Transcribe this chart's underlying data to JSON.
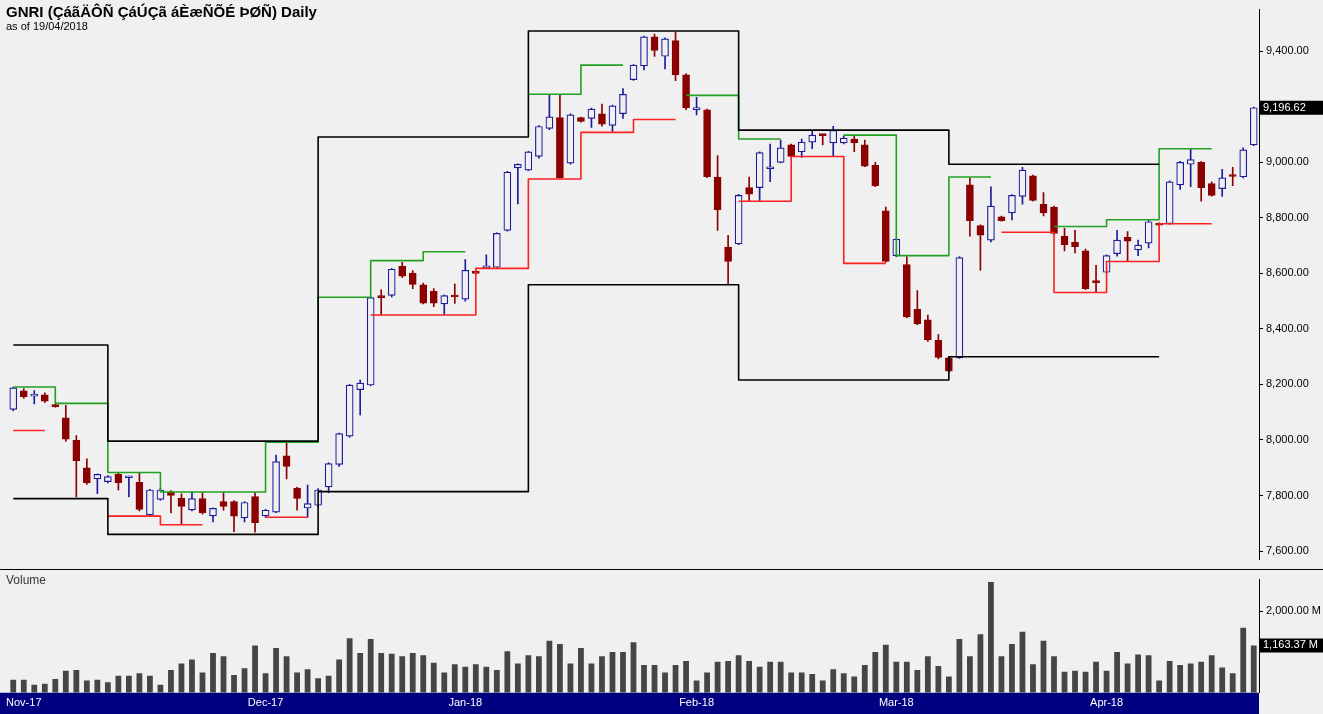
{
  "chart_data": [
    {
      "type": "candlestick",
      "title": "GNRI (ÇáãÄÔÑ ÇáÚÇã áÈæÑÕÉ ÞØÑ) Daily",
      "subtitle": "as of 19/04/2018",
      "categories": [
        null,
        null,
        null,
        null,
        null,
        null,
        null,
        null,
        null,
        null,
        null,
        null,
        null,
        null,
        null,
        null,
        null,
        null,
        null,
        null,
        null,
        null,
        null,
        null,
        null,
        null,
        null,
        null,
        null,
        null,
        null,
        null,
        null,
        null,
        null,
        null,
        null,
        null,
        null,
        null,
        null,
        null,
        null,
        null,
        null,
        null,
        null,
        null,
        null,
        null,
        null,
        null,
        null,
        null,
        null,
        null,
        null,
        null,
        null,
        null,
        null,
        null,
        null,
        null,
        null,
        null,
        null,
        null,
        null,
        null,
        null,
        null,
        null,
        null,
        null,
        null,
        null,
        null,
        null,
        null,
        null,
        null,
        null,
        null,
        null,
        null,
        null,
        null,
        null,
        null,
        null,
        null,
        null,
        null,
        null,
        null,
        null,
        null,
        null,
        null,
        null,
        null,
        null,
        null,
        null,
        null,
        null,
        null,
        null,
        null,
        null,
        null,
        null,
        null,
        null,
        null,
        null,
        null,
        null
      ],
      "ohlc": [
        [
          8110,
          8190,
          8105,
          8188
        ],
        [
          8177,
          8185,
          8150,
          8156
        ],
        [
          8158,
          8178,
          8130,
          8162
        ],
        [
          8163,
          8170,
          8135,
          8140
        ],
        [
          8128,
          8130,
          8118,
          8120
        ],
        [
          8080,
          8125,
          7995,
          8003
        ],
        [
          7999,
          8016,
          7795,
          7926
        ],
        [
          7900,
          7932,
          7840,
          7845
        ],
        [
          7860,
          7878,
          7807,
          7876
        ],
        [
          7850,
          7872,
          7845,
          7868
        ],
        [
          7876,
          7880,
          7820,
          7846
        ],
        [
          7864,
          7868,
          7795,
          7867
        ],
        [
          7848,
          7880,
          7745,
          7750
        ],
        [
          7730,
          7822,
          7728,
          7820
        ],
        [
          7786,
          7825,
          7783,
          7820
        ],
        [
          7813,
          7818,
          7737,
          7800
        ],
        [
          7790,
          7806,
          7695,
          7761
        ],
        [
          7748,
          7813,
          7745,
          7789
        ],
        [
          7789,
          7810,
          7733,
          7737
        ],
        [
          7727,
          7756,
          7705,
          7754
        ],
        [
          7778,
          7810,
          7747,
          7761
        ],
        [
          7778,
          7782,
          7670,
          7726
        ],
        [
          7720,
          7778,
          7705,
          7775
        ],
        [
          7796,
          7810,
          7668,
          7702
        ],
        [
          7727,
          7750,
          7722,
          7747
        ],
        [
          7740,
          7946,
          7738,
          7922
        ],
        [
          7943,
          7992,
          7860,
          7905
        ],
        [
          7827,
          7830,
          7747,
          7790
        ],
        [
          7755,
          7838,
          7722,
          7771
        ],
        [
          7765,
          7825,
          7760,
          7820
        ],
        [
          7831,
          7918,
          7810,
          7915
        ],
        [
          7912,
          8025,
          7905,
          8023
        ],
        [
          8014,
          8200,
          8010,
          8198
        ],
        [
          8181,
          8216,
          8090,
          8205
        ],
        [
          8198,
          8515,
          8195,
          8513
        ],
        [
          8520,
          8541,
          8450,
          8512
        ],
        [
          8521,
          8618,
          8515,
          8615
        ],
        [
          8625,
          8640,
          8585,
          8590
        ],
        [
          8601,
          8610,
          8545,
          8560
        ],
        [
          8559,
          8565,
          8490,
          8493
        ],
        [
          8535,
          8545,
          8480,
          8493
        ],
        [
          8490,
          8522,
          8452,
          8520
        ],
        [
          8520,
          8562,
          8492,
          8515
        ],
        [
          8507,
          8650,
          8500,
          8611
        ],
        [
          8608,
          8610,
          8598,
          8600
        ],
        [
          8620,
          8667,
          8618,
          8622
        ],
        [
          8622,
          8746,
          8620,
          8744
        ],
        [
          8755,
          8968,
          8752,
          8965
        ],
        [
          8980,
          8995,
          8850,
          8993
        ],
        [
          8972,
          9040,
          8970,
          9038
        ],
        [
          9021,
          9132,
          9015,
          9129
        ],
        [
          9122,
          9241,
          9118,
          9164
        ],
        [
          9161,
          9241,
          8944,
          8944
        ],
        [
          8997,
          9175,
          8993,
          9171
        ],
        [
          9161,
          9163,
          9145,
          9147
        ],
        [
          9158,
          9195,
          9126,
          9192
        ],
        [
          9175,
          9210,
          9130,
          9137
        ],
        [
          9133,
          9206,
          9108,
          9203
        ],
        [
          9175,
          9266,
          9158,
          9245
        ],
        [
          9298,
          9352,
          9295,
          9350
        ],
        [
          9347,
          9455,
          9333,
          9452
        ],
        [
          9452,
          9462,
          9381,
          9403
        ],
        [
          9382,
          9448,
          9336,
          9445
        ],
        [
          9438,
          9469,
          9294,
          9315
        ],
        [
          9315,
          9320,
          9190,
          9196
        ],
        [
          9190,
          9234,
          9171,
          9193
        ],
        [
          9189,
          9192,
          8945,
          8948
        ],
        [
          8947,
          9024,
          8755,
          8829
        ],
        [
          8695,
          8737,
          8562,
          8643
        ],
        [
          8706,
          8885,
          8703,
          8881
        ],
        [
          8909,
          8947,
          8860,
          8885
        ],
        [
          8909,
          9038,
          8860,
          9035
        ],
        [
          8977,
          9066,
          8930,
          8980
        ],
        [
          9000,
          9080,
          8998,
          9052
        ],
        [
          9063,
          9066,
          9018,
          9021
        ],
        [
          9038,
          9084,
          9018,
          9073
        ],
        [
          9073,
          9112,
          9049,
          9098
        ],
        [
          9100,
          9101,
          9063,
          9096
        ],
        [
          9070,
          9130,
          9021,
          9115
        ],
        [
          9070,
          9095,
          9066,
          9087
        ],
        [
          9084,
          9094,
          9038,
          9070
        ],
        [
          9063,
          9080,
          8984,
          8986
        ],
        [
          8989,
          9000,
          8912,
          8916
        ],
        [
          8825,
          8839,
          8640,
          8643
        ],
        [
          8664,
          8726,
          8660,
          8723
        ],
        [
          8632,
          8660,
          8440,
          8443
        ],
        [
          8471,
          8538,
          8415,
          8419
        ],
        [
          8433,
          8450,
          8355,
          8360
        ],
        [
          8359,
          8380,
          8292,
          8297
        ],
        [
          8296,
          8300,
          8243,
          8248
        ],
        [
          8296,
          8660,
          8294,
          8657
        ],
        [
          8919,
          8944,
          8734,
          8790
        ],
        [
          8772,
          8775,
          8611,
          8738
        ],
        [
          8720,
          8912,
          8713,
          8842
        ],
        [
          8804,
          8806,
          8788,
          8790
        ],
        [
          8818,
          8884,
          8793,
          8881
        ],
        [
          8877,
          8982,
          8849,
          8972
        ],
        [
          8951,
          8954,
          8860,
          8863
        ],
        [
          8849,
          8891,
          8807,
          8818
        ],
        [
          8839,
          8842,
          8741,
          8744
        ],
        [
          8734,
          8762,
          8681,
          8703
        ],
        [
          8713,
          8755,
          8674,
          8696
        ],
        [
          8681,
          8688,
          8542,
          8545
        ],
        [
          8571,
          8629,
          8531,
          8567
        ],
        [
          8604,
          8667,
          8601,
          8664
        ],
        [
          8671,
          8755,
          8662,
          8720
        ],
        [
          8730,
          8751,
          8643,
          8716
        ],
        [
          8685,
          8720,
          8664,
          8702
        ],
        [
          8709,
          8790,
          8692,
          8786
        ],
        [
          8780,
          8782,
          8772,
          8774
        ],
        [
          8779,
          8933,
          8776,
          8930
        ],
        [
          8919,
          9004,
          8902,
          9000
        ],
        [
          8993,
          9049,
          8912,
          9010
        ],
        [
          9000,
          9003,
          8860,
          8909
        ],
        [
          8923,
          8930,
          8878,
          8881
        ],
        [
          8905,
          8975,
          8877,
          8944
        ],
        [
          8953,
          8982,
          8916,
          8949
        ],
        [
          8948,
          9052,
          8944,
          9045
        ],
        [
          9063,
          9199,
          9060,
          9196.62
        ]
      ],
      "colors": [
        "#1c1c9c",
        "#8b0000",
        "#1c1c9c",
        "#8b0000",
        "#8b0000",
        "#8b0000",
        "#8b0000",
        "#8b0000",
        "#1c1c9c",
        "#1c1c9c",
        "#8b0000",
        "#1c1c9c",
        "#8b0000",
        "#1c1c9c",
        "#1c1c9c",
        "#8b0000",
        "#8b0000",
        "#1c1c9c",
        "#8b0000",
        "#1c1c9c",
        "#8b0000",
        "#8b0000",
        "#1c1c9c",
        "#8b0000",
        "#1c1c9c",
        "#1c1c9c",
        "#8b0000",
        "#8b0000",
        "#1c1c9c",
        "#1c1c9c",
        "#1c1c9c",
        "#1c1c9c",
        "#1c1c9c",
        "#1c1c9c",
        "#1c1c9c",
        "#8b0000",
        "#1c1c9c",
        "#8b0000",
        "#8b0000",
        "#8b0000",
        "#8b0000",
        "#1c1c9c",
        "#8b0000",
        "#1c1c9c",
        "#8b0000",
        "#1c1c9c",
        "#1c1c9c",
        "#1c1c9c",
        "#1c1c9c",
        "#1c1c9c",
        "#1c1c9c",
        "#1c1c9c",
        "#8b0000",
        "#1c1c9c",
        "#8b0000",
        "#1c1c9c",
        "#8b0000",
        "#1c1c9c",
        "#1c1c9c",
        "#1c1c9c",
        "#1c1c9c",
        "#8b0000",
        "#1c1c9c",
        "#8b0000",
        "#8b0000",
        "#1c1c9c",
        "#8b0000",
        "#8b0000",
        "#8b0000",
        "#1c1c9c",
        "#8b0000",
        "#1c1c9c",
        "#1c1c9c",
        "#1c1c9c",
        "#8b0000",
        "#1c1c9c",
        "#1c1c9c",
        "#8b0000",
        "#1c1c9c",
        "#1c1c9c",
        "#8b0000",
        "#8b0000",
        "#8b0000",
        "#8b0000",
        "#1c1c9c",
        "#8b0000",
        "#8b0000",
        "#8b0000",
        "#8b0000",
        "#8b0000",
        "#1c1c9c",
        "#8b0000",
        "#8b0000",
        "#1c1c9c",
        "#8b0000",
        "#1c1c9c",
        "#1c1c9c",
        "#8b0000",
        "#8b0000",
        "#8b0000",
        "#8b0000",
        "#8b0000",
        "#8b0000",
        "#8b0000",
        "#1c1c9c",
        "#1c1c9c",
        "#8b0000",
        "#1c1c9c",
        "#1c1c9c",
        "#8b0000",
        "#1c1c9c",
        "#1c1c9c",
        "#1c1c9c",
        "#8b0000",
        "#8b0000",
        "#1c1c9c",
        "#8b0000",
        "#1c1c9c",
        "#1c1c9c"
      ],
      "series": [
        {
          "type": "step",
          "color": "#000000",
          "values": [
            8342,
            8342,
            8342,
            8342,
            8342,
            8342,
            8342,
            8342,
            8342,
            7996,
            7996,
            7996,
            7996,
            7996,
            7996,
            7996,
            7996,
            7996,
            7996,
            7996,
            7996,
            7996,
            7996,
            7996,
            7996,
            7996,
            7996,
            7996,
            7996,
            9091,
            9091,
            9091,
            9091,
            9091,
            9091,
            9091,
            9091,
            9091,
            9091,
            9091,
            9091,
            9091,
            9091,
            9091,
            9091,
            9091,
            9091,
            9091,
            9091,
            9473,
            9473,
            9473,
            9473,
            9473,
            9473,
            9473,
            9473,
            9473,
            9473,
            9473,
            9473,
            9473,
            9473,
            9473,
            9473,
            9473,
            9473,
            9473,
            9473,
            9116,
            9116,
            9116,
            9116,
            9116,
            9116,
            9116,
            9116,
            9116,
            9116,
            9116,
            9116,
            9116,
            9116,
            9116,
            9116,
            9116,
            9116,
            9116,
            9116,
            8993,
            8993,
            8993,
            8993,
            8993,
            8993,
            8993,
            8993,
            8993,
            8993,
            8993,
            8993,
            8993,
            8993,
            8993,
            8993,
            8993,
            8993,
            8993,
            8993,
            8993,
            null,
            null,
            null,
            null,
            null,
            null,
            null,
            null,
            null
          ]
        },
        {
          "type": "step",
          "color": "#000000",
          "values": [
            7789,
            7789,
            7789,
            7789,
            7789,
            7789,
            7789,
            7789,
            7789,
            7660,
            7660,
            7660,
            7660,
            7660,
            7660,
            7660,
            7660,
            7660,
            7660,
            7660,
            7660,
            7660,
            7660,
            7660,
            7660,
            7660,
            7660,
            7660,
            7660,
            7814,
            7814,
            7814,
            7814,
            7814,
            7814,
            7814,
            7814,
            7814,
            7814,
            7814,
            7814,
            7814,
            7814,
            7814,
            7814,
            7814,
            7814,
            7814,
            7814,
            8559,
            8559,
            8559,
            8559,
            8559,
            8559,
            8559,
            8559,
            8559,
            8559,
            8559,
            8559,
            8559,
            8559,
            8559,
            8559,
            8559,
            8559,
            8559,
            8559,
            8216,
            8216,
            8216,
            8216,
            8216,
            8216,
            8216,
            8216,
            8216,
            8216,
            8216,
            8216,
            8216,
            8216,
            8216,
            8216,
            8216,
            8216,
            8216,
            8216,
            8300,
            8300,
            8300,
            8300,
            8300,
            8300,
            8300,
            8300,
            8300,
            8300,
            8300,
            8300,
            8300,
            8300,
            8300,
            8300,
            8300,
            8300,
            8300,
            8300,
            8300,
            null,
            null,
            null,
            null,
            null,
            null,
            null,
            null,
            null
          ]
        },
        {
          "type": "step",
          "color": "#22a022",
          "values": [
            8191,
            8191,
            8191,
            8191,
            8132,
            8132,
            8132,
            8132,
            8132,
            7883,
            7883,
            7883,
            7883,
            7883,
            7813,
            7813,
            7813,
            7813,
            7813,
            7813,
            7813,
            7813,
            7813,
            7813,
            7992,
            7992,
            7992,
            7992,
            7992,
            8514,
            8514,
            8514,
            8514,
            8514,
            8646,
            8646,
            8646,
            8646,
            8646,
            8678,
            8678,
            8678,
            8678,
            8678,
            null,
            null,
            null,
            null,
            null,
            9245,
            9245,
            9245,
            9245,
            9245,
            9350,
            9350,
            9350,
            9350,
            9350,
            null,
            null,
            null,
            null,
            null,
            9241,
            9241,
            9241,
            9241,
            9241,
            9084,
            9084,
            9084,
            9084,
            9084,
            null,
            null,
            null,
            null,
            null,
            9098,
            9098,
            9098,
            9098,
            9098,
            8664,
            8664,
            8664,
            8664,
            8664,
            8947,
            8947,
            8947,
            8947,
            8947,
            null,
            null,
            null,
            null,
            null,
            8769,
            8769,
            8769,
            8769,
            8769,
            8793,
            8793,
            8793,
            8793,
            8793,
            9049,
            9049,
            9049,
            9049,
            9049,
            9049,
            null,
            null,
            null,
            null
          ]
        },
        {
          "type": "step",
          "color": "#ff2020",
          "values": [
            8034,
            8034,
            8034,
            8034,
            null,
            null,
            null,
            null,
            null,
            7726,
            7726,
            7726,
            7726,
            7726,
            7695,
            7695,
            7695,
            7695,
            7695,
            null,
            null,
            null,
            null,
            null,
            7722,
            7722,
            7722,
            7722,
            7722,
            null,
            null,
            null,
            null,
            null,
            8450,
            8450,
            8450,
            8450,
            8450,
            8450,
            8450,
            8450,
            8450,
            8450,
            8618,
            8618,
            8618,
            8618,
            8618,
            8940,
            8940,
            8940,
            8940,
            8940,
            9108,
            9108,
            9108,
            9108,
            9108,
            9154,
            9154,
            9154,
            9154,
            9154,
            null,
            null,
            null,
            null,
            null,
            8860,
            8860,
            8860,
            8860,
            8860,
            9021,
            9021,
            9021,
            9021,
            9021,
            8636,
            8636,
            8636,
            8636,
            8636,
            null,
            null,
            null,
            null,
            null,
            null,
            null,
            null,
            null,
            null,
            8748,
            8748,
            8748,
            8748,
            8748,
            8531,
            8531,
            8531,
            8531,
            8531,
            8643,
            8643,
            8643,
            8643,
            8643,
            8779,
            8779,
            8779,
            8779,
            8779,
            8779,
            null,
            null,
            null,
            null
          ]
        }
      ],
      "ylim": [
        7570,
        9550
      ],
      "yticks": [
        {
          "value": 7600,
          "label": "7,600.00"
        },
        {
          "value": 7800,
          "label": "7,800.00"
        },
        {
          "value": 8000,
          "label": "8,000.00"
        },
        {
          "value": 8200,
          "label": "8,200.00"
        },
        {
          "value": 8400,
          "label": "8,400.00"
        },
        {
          "value": 8600,
          "label": "8,600.00"
        },
        {
          "value": 8800,
          "label": "8,800.00"
        },
        {
          "value": 9000,
          "label": "9,000.00"
        },
        {
          "value": 9400,
          "label": "9,400.00"
        }
      ],
      "tick_labels": "y",
      "annotations": [
        "9,196.62"
      ]
    },
    {
      "type": "bar",
      "title": "Volume",
      "categories": [
        null,
        "Nov-17",
        null,
        null,
        null,
        null,
        null,
        null,
        null,
        null,
        null,
        null,
        null,
        null,
        null,
        null,
        null,
        null,
        null,
        null,
        null,
        null,
        null,
        null,
        "Dec-17",
        null,
        null,
        null,
        null,
        null,
        null,
        null,
        null,
        null,
        null,
        null,
        null,
        null,
        null,
        null,
        null,
        null,
        null,
        "Jan-18",
        null,
        null,
        null,
        null,
        null,
        null,
        null,
        null,
        null,
        null,
        null,
        null,
        null,
        null,
        null,
        null,
        null,
        null,
        null,
        null,
        null,
        "Feb-18",
        null,
        null,
        null,
        null,
        null,
        null,
        null,
        null,
        null,
        null,
        null,
        null,
        null,
        null,
        null,
        null,
        null,
        null,
        "Mar-18",
        null,
        null,
        null,
        null,
        null,
        null,
        null,
        null,
        null,
        null,
        null,
        null,
        null,
        null,
        null,
        null,
        null,
        null,
        null,
        "Apr-18",
        null,
        null,
        null,
        null,
        null,
        null,
        null,
        null,
        null,
        null,
        null,
        null,
        null,
        null
      ],
      "values": [
        320,
        320,
        200,
        220,
        340,
        540,
        560,
        300,
        320,
        260,
        420,
        420,
        480,
        420,
        200,
        560,
        720,
        820,
        500,
        980,
        900,
        440,
        600,
        1160,
        480,
        1100,
        900,
        500,
        580,
        360,
        420,
        820,
        1340,
        980,
        1320,
        980,
        960,
        900,
        980,
        920,
        740,
        500,
        700,
        640,
        700,
        640,
        560,
        1020,
        720,
        920,
        900,
        1280,
        1200,
        720,
        1100,
        720,
        900,
        1000,
        1000,
        1240,
        680,
        680,
        500,
        680,
        780,
        300,
        500,
        760,
        780,
        920,
        780,
        640,
        760,
        760,
        500,
        500,
        460,
        300,
        580,
        480,
        400,
        680,
        1000,
        1180,
        760,
        760,
        560,
        900,
        660,
        400,
        1320,
        900,
        1440,
        2720,
        900,
        1200,
        1500,
        700,
        1280,
        900,
        520,
        540,
        520,
        760,
        540,
        1000,
        720,
        940,
        920,
        300,
        780,
        680,
        720,
        760,
        920,
        620,
        480,
        1600,
        1163.37
      ],
      "color": "#454545",
      "ylim": [
        0,
        2780
      ],
      "yticks": [
        {
          "value": 2000,
          "label": "2,000.00 M"
        }
      ],
      "annotations": [
        "1,163.37 M"
      ]
    }
  ]
}
